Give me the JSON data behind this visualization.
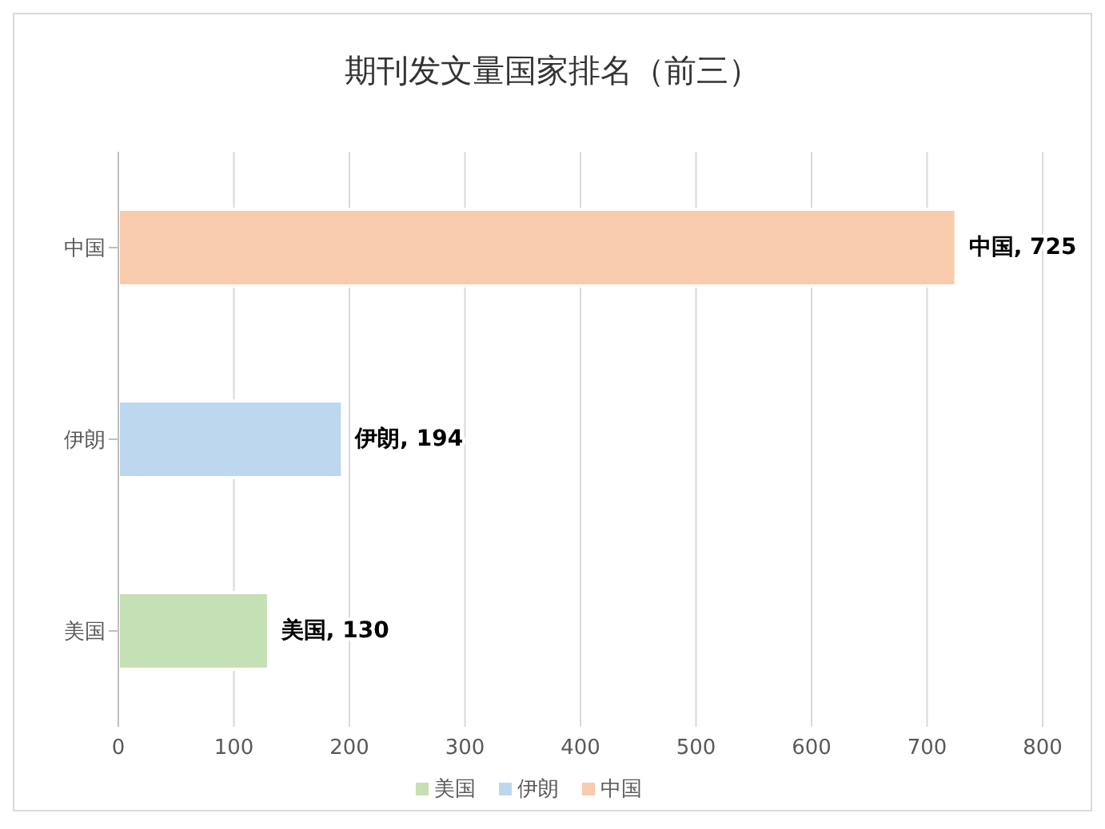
{
  "chart_data": {
    "type": "bar",
    "orientation": "horizontal",
    "stacked": true,
    "title": "期刊发文量国家排名（前三）",
    "categories": [
      "中国",
      "伊朗",
      "美国"
    ],
    "series": [
      {
        "name": "美国",
        "color": "#c5e0b4",
        "values": [
          null,
          null,
          130
        ],
        "value_labels": [
          null,
          null,
          "美国, 130"
        ]
      },
      {
        "name": "伊朗",
        "color": "#bdd7ee",
        "values": [
          null,
          194,
          null
        ],
        "value_labels": [
          null,
          "伊朗, 194",
          null
        ]
      },
      {
        "name": "中国",
        "color": "#f8cbad",
        "values": [
          725,
          null,
          null
        ],
        "value_labels": [
          "中国, 725",
          null,
          null
        ]
      }
    ],
    "xlim": [
      0,
      800
    ],
    "xticks": [
      0,
      100,
      200,
      300,
      400,
      500,
      600,
      700,
      800
    ],
    "grid": "x",
    "legend": "bottom"
  }
}
